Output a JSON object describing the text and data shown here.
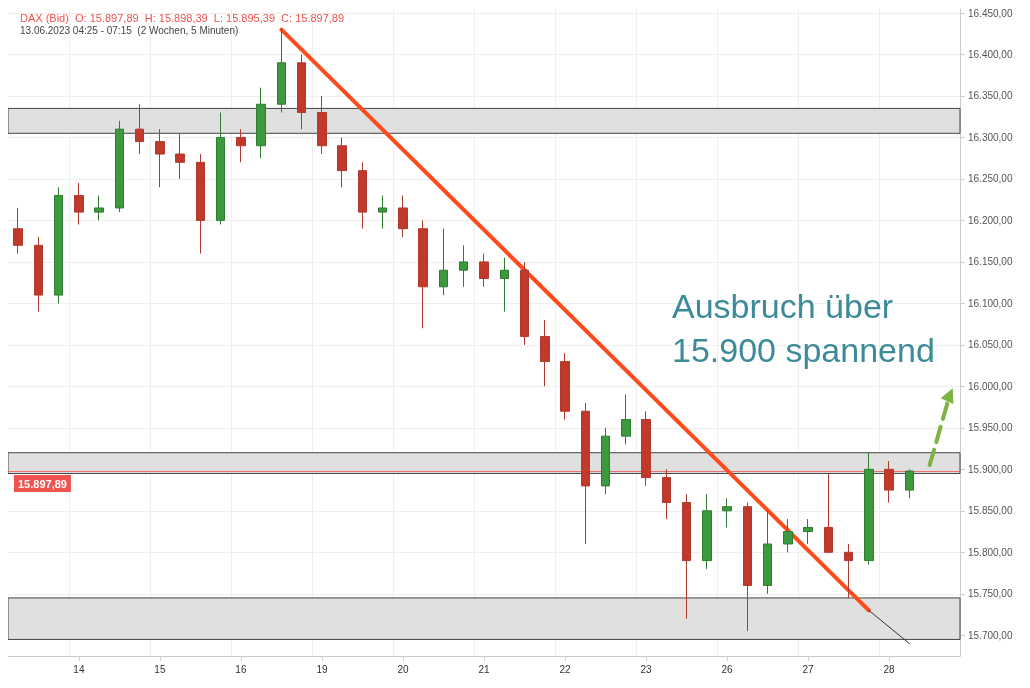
{
  "chart_data": {
    "type": "candlestick",
    "title": "DAX (Bid)  O: 15.897,89  H: 15.898,39  L: 15.895,39  C: 15.897,89",
    "subtitle": "13.06.2023 04:25 - 07:15  (2 Wochen, 5 Minuten)",
    "annotations": [
      "Ausbruch über 15.900 spannend"
    ],
    "categories": [
      null,
      null,
      null,
      "14",
      null,
      null,
      null,
      "15",
      null,
      null,
      null,
      "16",
      null,
      null,
      null,
      "19",
      null,
      null,
      null,
      "20",
      null,
      null,
      null,
      "21",
      null,
      null,
      null,
      "22",
      null,
      null,
      null,
      "23",
      null,
      null,
      null,
      "26",
      null,
      null,
      null,
      "27",
      null,
      null,
      null,
      "28",
      null,
      null,
      null
    ],
    "ohlc": [
      [
        16190,
        16215,
        16160,
        16170
      ],
      [
        16170,
        16180,
        16090,
        16110
      ],
      [
        16110,
        16240,
        16100,
        16230
      ],
      [
        16230,
        16245,
        16195,
        16210
      ],
      [
        16210,
        16230,
        16200,
        16215
      ],
      [
        16215,
        16320,
        16210,
        16310
      ],
      [
        16310,
        16340,
        16280,
        16295
      ],
      [
        16295,
        16310,
        16240,
        16280
      ],
      [
        16280,
        16305,
        16250,
        16270
      ],
      [
        16270,
        16280,
        16160,
        16200
      ],
      [
        16200,
        16330,
        16195,
        16300
      ],
      [
        16300,
        16310,
        16270,
        16290
      ],
      [
        16290,
        16360,
        16275,
        16340
      ],
      [
        16340,
        16430,
        16330,
        16390
      ],
      [
        16390,
        16400,
        16310,
        16330
      ],
      [
        16330,
        16350,
        16280,
        16290
      ],
      [
        16290,
        16300,
        16240,
        16260
      ],
      [
        16260,
        16270,
        16190,
        16210
      ],
      [
        16210,
        16230,
        16190,
        16215
      ],
      [
        16215,
        16230,
        16180,
        16190
      ],
      [
        16190,
        16200,
        16070,
        16120
      ],
      [
        16120,
        16190,
        16110,
        16140
      ],
      [
        16140,
        16170,
        16120,
        16150
      ],
      [
        16150,
        16160,
        16120,
        16130
      ],
      [
        16130,
        16155,
        16090,
        16140
      ],
      [
        16140,
        16150,
        16050,
        16060
      ],
      [
        16060,
        16080,
        16000,
        16030
      ],
      [
        16030,
        16040,
        15960,
        15970
      ],
      [
        15970,
        15980,
        15810,
        15880
      ],
      [
        15880,
        15950,
        15870,
        15940
      ],
      [
        15940,
        15990,
        15930,
        15960
      ],
      [
        15960,
        15970,
        15880,
        15890
      ],
      [
        15890,
        15900,
        15840,
        15860
      ],
      [
        15860,
        15870,
        15720,
        15790
      ],
      [
        15790,
        15870,
        15780,
        15850
      ],
      [
        15850,
        15865,
        15830,
        15855
      ],
      [
        15855,
        15860,
        15705,
        15760
      ],
      [
        15760,
        15850,
        15750,
        15810
      ],
      [
        15810,
        15840,
        15800,
        15825
      ],
      [
        15825,
        15840,
        15810,
        15830
      ],
      [
        15830,
        15895,
        15800,
        15800
      ],
      [
        15800,
        15810,
        15745,
        15790
      ],
      [
        15790,
        15920,
        15785,
        15900
      ],
      [
        15900,
        15910,
        15860,
        15875
      ],
      [
        15875,
        15900,
        15865,
        15897.89
      ],
      null,
      null
    ],
    "series": [
      {
        "type": "line",
        "color": "#ff4a1c",
        "values": [
          null,
          null,
          null,
          null,
          null,
          null,
          null,
          null,
          null,
          null,
          null,
          null,
          null,
          16430,
          null,
          null,
          null,
          null,
          null,
          null,
          null,
          null,
          null,
          null,
          null,
          null,
          null,
          null,
          null,
          null,
          null,
          null,
          null,
          null,
          null,
          null,
          null,
          null,
          null,
          null,
          null,
          null,
          15730,
          null,
          null,
          null,
          null
        ]
      },
      {
        "type": "line",
        "color": "#333333",
        "values": [
          null,
          null,
          null,
          null,
          null,
          null,
          null,
          null,
          null,
          null,
          null,
          null,
          null,
          null,
          null,
          null,
          null,
          null,
          null,
          null,
          null,
          null,
          null,
          null,
          null,
          null,
          null,
          null,
          null,
          null,
          null,
          null,
          null,
          null,
          null,
          null,
          null,
          null,
          null,
          null,
          null,
          null,
          15730,
          null,
          15690,
          null,
          null
        ]
      },
      {
        "type": "line",
        "color": "#7cb342",
        "line_style": "dashed",
        "values": [
          null,
          null,
          null,
          null,
          null,
          null,
          null,
          null,
          null,
          null,
          null,
          null,
          null,
          null,
          null,
          null,
          null,
          null,
          null,
          null,
          null,
          null,
          null,
          null,
          null,
          null,
          null,
          null,
          null,
          null,
          null,
          null,
          null,
          null,
          null,
          null,
          null,
          null,
          null,
          null,
          null,
          null,
          null,
          null,
          null,
          15905,
          15990
        ]
      }
    ],
    "ylim": [
      15675,
      16455
    ],
    "yticks": [
      {
        "value": 15700,
        "label": "15.700,00"
      },
      {
        "value": 15750,
        "label": "15.750,00"
      },
      {
        "value": 15800,
        "label": "15.800,00"
      },
      {
        "value": 15850,
        "label": "15.850,00"
      },
      {
        "value": 15900,
        "label": "15.900,00"
      },
      {
        "value": 15950,
        "label": "15.950,00"
      },
      {
        "value": 16000,
        "label": "16.000,00"
      },
      {
        "value": 16050,
        "label": "16.050,00"
      },
      {
        "value": 16100,
        "label": "16.100,00"
      },
      {
        "value": 16150,
        "label": "16.150,00"
      },
      {
        "value": 16200,
        "label": "16.200,00"
      },
      {
        "value": 16250,
        "label": "16.250,00"
      },
      {
        "value": 16300,
        "label": "16.300,00"
      },
      {
        "value": 16350,
        "label": "16.350,00"
      },
      {
        "value": 16400,
        "label": "16.400,00"
      },
      {
        "value": 16450,
        "label": "16.450,00"
      }
    ],
    "bands": [
      {
        "axis": "y",
        "from": 16305,
        "to": 16335,
        "color": "#e0e0e0"
      },
      {
        "axis": "y",
        "from": 15895,
        "to": 15920,
        "color": "#e0e0e0"
      },
      {
        "axis": "y",
        "from": 15695,
        "to": 15745,
        "color": "#e0e0e0"
      }
    ],
    "ref_lines": [
      {
        "axis": "y",
        "value": 15897.89,
        "label": "15.897,89",
        "color": "#ef5350"
      }
    ],
    "grid": true
  }
}
